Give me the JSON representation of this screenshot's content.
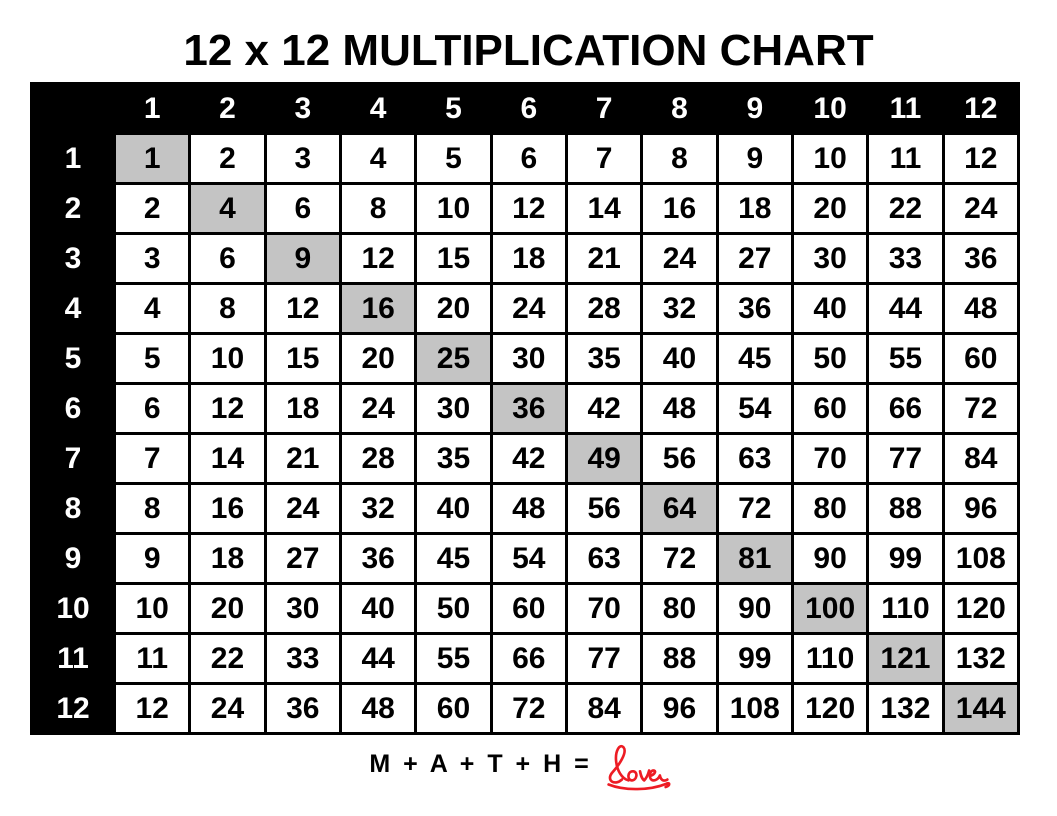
{
  "title": "12 x 12 MULTIPLICATION CHART",
  "colors": {
    "header_bg": "#000000",
    "cell_bg": "#ffffff",
    "highlight_gray": "#c4c4c4",
    "accent_red": "#ed1c24",
    "grid_border": "#000000"
  },
  "table": {
    "corner_label": "",
    "column_headers": [
      "1",
      "2",
      "3",
      "4",
      "5",
      "6",
      "7",
      "8",
      "9",
      "10",
      "11",
      "12"
    ],
    "row_headers": [
      "1",
      "2",
      "3",
      "4",
      "5",
      "6",
      "7",
      "8",
      "9",
      "10",
      "11",
      "12"
    ],
    "rows": [
      [
        1,
        2,
        3,
        4,
        5,
        6,
        7,
        8,
        9,
        10,
        11,
        12
      ],
      [
        2,
        4,
        6,
        8,
        10,
        12,
        14,
        16,
        18,
        20,
        22,
        24
      ],
      [
        3,
        6,
        9,
        12,
        15,
        18,
        21,
        24,
        27,
        30,
        33,
        36
      ],
      [
        4,
        8,
        12,
        16,
        20,
        24,
        28,
        32,
        36,
        40,
        44,
        48
      ],
      [
        5,
        10,
        15,
        20,
        25,
        30,
        35,
        40,
        45,
        50,
        55,
        60
      ],
      [
        6,
        12,
        18,
        24,
        30,
        36,
        42,
        48,
        54,
        60,
        66,
        72
      ],
      [
        7,
        14,
        21,
        28,
        35,
        42,
        49,
        56,
        63,
        70,
        77,
        84
      ],
      [
        8,
        16,
        24,
        32,
        40,
        48,
        56,
        64,
        72,
        80,
        88,
        96
      ],
      [
        9,
        18,
        27,
        36,
        45,
        54,
        63,
        72,
        81,
        90,
        99,
        108
      ],
      [
        10,
        20,
        30,
        40,
        50,
        60,
        70,
        80,
        90,
        100,
        110,
        120
      ],
      [
        11,
        22,
        33,
        44,
        55,
        66,
        77,
        88,
        99,
        110,
        121,
        132
      ],
      [
        12,
        24,
        36,
        48,
        60,
        72,
        84,
        96,
        108,
        120,
        132,
        144
      ]
    ],
    "highlighted_diagonal_squares": [
      1,
      4,
      9,
      16,
      25,
      36,
      49,
      64,
      81,
      100,
      121,
      144
    ]
  },
  "footer": {
    "equation": "M + A + T + H =",
    "love_word": "love"
  },
  "chart_data": {
    "type": "table",
    "title": "12 x 12 MULTIPLICATION CHART",
    "categories": [
      "1",
      "2",
      "3",
      "4",
      "5",
      "6",
      "7",
      "8",
      "9",
      "10",
      "11",
      "12"
    ],
    "row_labels": [
      "1",
      "2",
      "3",
      "4",
      "5",
      "6",
      "7",
      "8",
      "9",
      "10",
      "11",
      "12"
    ],
    "values": [
      [
        1,
        2,
        3,
        4,
        5,
        6,
        7,
        8,
        9,
        10,
        11,
        12
      ],
      [
        2,
        4,
        6,
        8,
        10,
        12,
        14,
        16,
        18,
        20,
        22,
        24
      ],
      [
        3,
        6,
        9,
        12,
        15,
        18,
        21,
        24,
        27,
        30,
        33,
        36
      ],
      [
        4,
        8,
        12,
        16,
        20,
        24,
        28,
        32,
        36,
        40,
        44,
        48
      ],
      [
        5,
        10,
        15,
        20,
        25,
        30,
        35,
        40,
        45,
        50,
        55,
        60
      ],
      [
        6,
        12,
        18,
        24,
        30,
        36,
        42,
        48,
        54,
        60,
        66,
        72
      ],
      [
        7,
        14,
        21,
        28,
        35,
        42,
        49,
        56,
        63,
        70,
        77,
        84
      ],
      [
        8,
        16,
        24,
        32,
        40,
        48,
        56,
        64,
        72,
        80,
        88,
        96
      ],
      [
        9,
        18,
        27,
        36,
        45,
        54,
        63,
        72,
        81,
        90,
        99,
        108
      ],
      [
        10,
        20,
        30,
        40,
        50,
        60,
        70,
        80,
        90,
        100,
        110,
        120
      ],
      [
        11,
        22,
        33,
        44,
        55,
        66,
        77,
        88,
        99,
        110,
        121,
        132
      ],
      [
        12,
        24,
        36,
        48,
        60,
        72,
        84,
        96,
        108,
        120,
        132,
        144
      ]
    ],
    "annotations": [
      "Diagonal perfect squares highlighted in gray",
      "M + A + T + H = love"
    ],
    "legend_position": "none",
    "grid": true
  }
}
